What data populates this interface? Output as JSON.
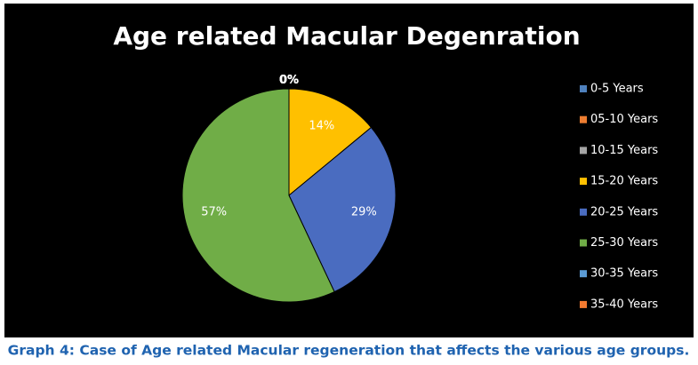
{
  "chart_data": {
    "type": "pie",
    "title": "Age related Macular Degenration",
    "caption": "Graph 4: Case of Age related Macular regeneration that affects the various age groups.",
    "categories": [
      "0-5 Years",
      "05-10 Years",
      "10-15 Years",
      "15-20 Years",
      "20-25 Years",
      "25-30 Years",
      "30-35 Years",
      "35-40 Years"
    ],
    "values": [
      0,
      0,
      0,
      14,
      29,
      57,
      0,
      0
    ],
    "value_labels": [
      "0%",
      "0%",
      "0%",
      "14%",
      "29%",
      "57%",
      "0%",
      "0%"
    ],
    "colors": [
      "#4f81bd",
      "#ed7d31",
      "#a5a5a5",
      "#ffc000",
      "#4a6cc0",
      "#70ad47",
      "#5b9bd5",
      "#f47a30"
    ],
    "legend": "right"
  }
}
